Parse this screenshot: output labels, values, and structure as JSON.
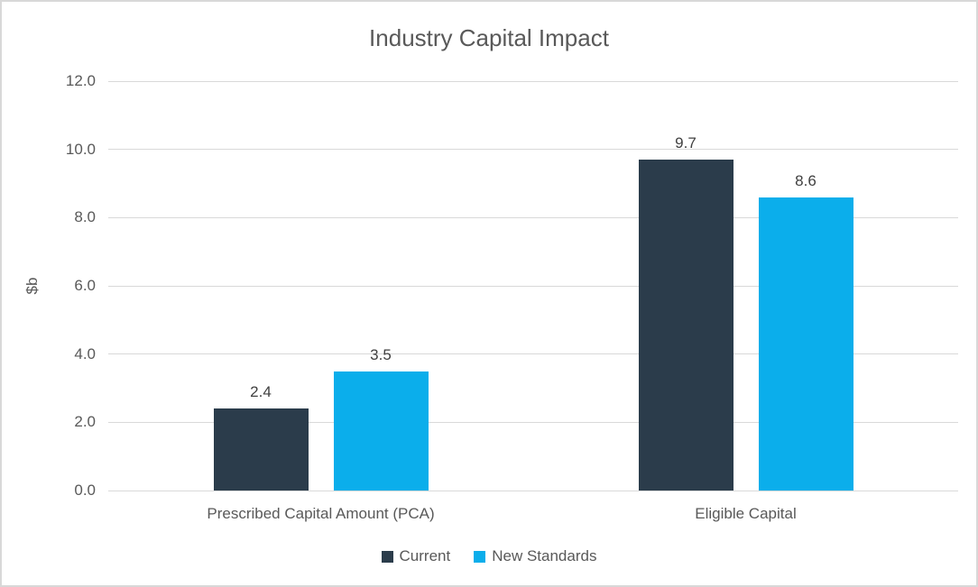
{
  "chart_data": {
    "type": "bar",
    "title": "Industry Capital Impact",
    "xlabel": "",
    "ylabel": "$b",
    "categories": [
      "Prescribed Capital Amount (PCA)",
      "Eligible Capital"
    ],
    "series": [
      {
        "name": "Current",
        "color": "#2B3C4B",
        "values": [
          2.4,
          9.7
        ]
      },
      {
        "name": "New Standards",
        "color": "#0BAEEB",
        "values": [
          3.5,
          8.6
        ]
      }
    ],
    "data_labels": [
      [
        "2.4",
        "9.7"
      ],
      [
        "3.5",
        "8.6"
      ]
    ],
    "ylim": [
      0,
      12
    ],
    "ytick_step": 2,
    "ytick_labels": [
      "0.0",
      "2.0",
      "4.0",
      "6.0",
      "8.0",
      "10.0",
      "12.0"
    ],
    "grid": true,
    "legend_position": "bottom",
    "colors": {
      "gridline": "#D9D9D9",
      "axis_text": "#595959",
      "title_text": "#595959",
      "data_label_text": "#404040",
      "frame_border": "#D8D8D8",
      "background": "#FFFFFF"
    }
  }
}
